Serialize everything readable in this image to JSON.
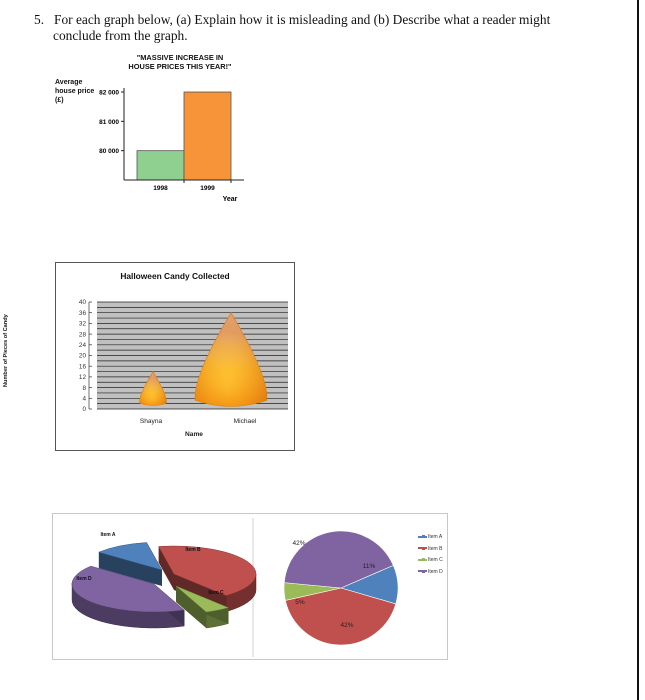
{
  "question": {
    "number": "5.",
    "line1": "For each graph below, (a) Explain how it is misleading and (b) Describe what a reader might",
    "line2": "conclude from the graph."
  },
  "chart_data": [
    {
      "type": "bar",
      "title_line1": "\"MASSIVE INCREASE IN",
      "title_line2": "HOUSE PRICES THIS YEAR!\"",
      "ylabel": "Average house price (£)",
      "xlabel": "Year",
      "categories": [
        "1998",
        "1999"
      ],
      "values": [
        80000,
        82000
      ],
      "yticks": [
        "80 000",
        "81 000",
        "82 000"
      ],
      "ylim": [
        79000,
        82000
      ],
      "colors": [
        "#8fcf8f",
        "#f7943a"
      ],
      "grid": false
    },
    {
      "type": "bar",
      "title": "Halloween Candy Collected",
      "xlabel": "Name",
      "ylabel": "Number of Pieces of Candy",
      "categories": [
        "Shayna",
        "Michael"
      ],
      "values": [
        14,
        36
      ],
      "ylim": [
        0,
        40
      ],
      "yticks": [
        "0",
        "4",
        "8",
        "12",
        "16",
        "20",
        "24",
        "28",
        "32",
        "36",
        "40"
      ],
      "grid": true,
      "mark_style": "candy-corn"
    },
    {
      "type": "pie",
      "style": "3d-exploded",
      "labels": [
        "Item A",
        "Item B",
        "Item C",
        "Item D"
      ],
      "colors": [
        "#4f81bd",
        "#c0504d",
        "#9bbb59",
        "#8064a2"
      ],
      "values": [
        11,
        42,
        5,
        42
      ]
    },
    {
      "type": "pie",
      "labels": [
        "Item A",
        "Item B",
        "Item C",
        "Item D"
      ],
      "colors": [
        "#4f81bd",
        "#c0504d",
        "#9bbb59",
        "#8064a2"
      ],
      "values": [
        11,
        42,
        5,
        42
      ],
      "value_labels": [
        "11%",
        "42%",
        "5%",
        "42%"
      ],
      "legend": "right"
    }
  ]
}
